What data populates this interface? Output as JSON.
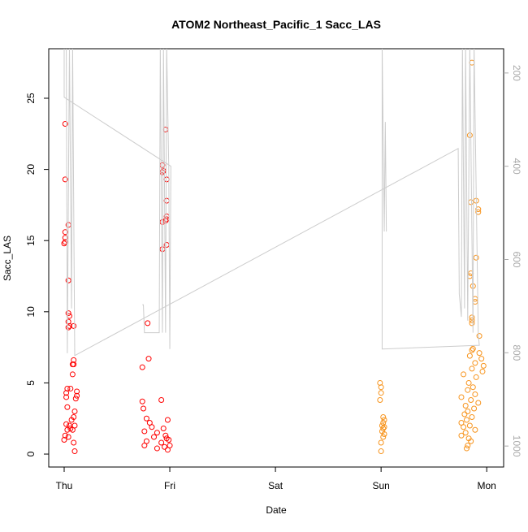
{
  "chart_data": {
    "type": "scatter",
    "title": "ATOM2 Northeast_Pacific_1 Sacc_LAS",
    "x_label": "Date",
    "y_label": "Sacc_LAS",
    "xlim": [
      -0.146,
      4.16
    ],
    "ylim": [
      -0.91,
      28.48
    ],
    "y2lim": [
      1045,
      148
    ],
    "xticks": [
      {
        "value": 0,
        "label": "Thu"
      },
      {
        "value": 1,
        "label": "Fri"
      },
      {
        "value": 2,
        "label": "Sat"
      },
      {
        "value": 3,
        "label": "Sun"
      },
      {
        "value": 4,
        "label": "Mon"
      }
    ],
    "yticks": [
      0,
      5,
      10,
      15,
      20,
      25
    ],
    "y2ticks": [
      200,
      400,
      600,
      800,
      1000
    ],
    "series": [
      {
        "color": "#ff0000",
        "x": [
          0.01,
          0.01,
          0.01,
          0.01,
          0.01,
          0.0,
          0.04,
          0.04,
          0.04,
          0.05,
          0.04,
          0.05,
          0.04,
          0.09,
          0.09,
          0.08,
          0.09,
          0.08,
          0.03,
          0.06,
          0.12,
          0.02,
          0.12,
          0.02,
          0.11,
          0.03,
          0.1,
          0.09,
          0.07,
          0.02,
          0.05,
          0.1,
          0.06,
          0.03,
          0.08,
          0.01,
          0.04,
          0.0,
          0.09,
          0.1,
          0.74,
          0.8,
          0.79,
          0.74,
          0.75,
          0.92,
          0.78,
          0.81,
          0.83,
          0.76,
          0.88,
          0.85,
          0.78,
          0.92,
          0.76,
          0.88,
          0.95,
          0.98,
          1.0,
          0.93,
          0.93,
          0.94,
          0.96,
          0.97,
          0.97,
          0.97,
          0.96,
          0.93,
          0.97,
          0.97,
          0.93,
          0.98,
          0.96,
          0.99,
          0.94,
          0.97
        ],
        "values": [
          23.2,
          19.3,
          15.6,
          15.2,
          14.9,
          14.8,
          16.1,
          12.2,
          9.9,
          9.7,
          9.3,
          9.0,
          8.9,
          9.0,
          6.6,
          6.3,
          6.3,
          5.6,
          4.6,
          4.6,
          4.4,
          4.3,
          4.1,
          4.0,
          3.9,
          3.3,
          3.0,
          2.6,
          2.4,
          2.1,
          2.0,
          2.0,
          1.8,
          1.7,
          1.7,
          1.3,
          1.2,
          1.0,
          0.8,
          0.2,
          6.1,
          6.7,
          9.2,
          3.7,
          3.2,
          3.8,
          2.5,
          2.2,
          1.9,
          1.6,
          1.5,
          1.2,
          0.9,
          0.8,
          0.6,
          0.4,
          0.5,
          0.3,
          0.6,
          20.3,
          19.8,
          19.9,
          22.8,
          19.3,
          17.8,
          16.7,
          16.4,
          16.3,
          16.5,
          14.7,
          14.4,
          2.4,
          1.3,
          1.0,
          1.8,
          1.1
        ]
      },
      {
        "color": "#f7941d",
        "x": [
          2.99,
          3.0,
          3.0,
          2.99,
          3.02,
          3.03,
          3.02,
          3.01,
          3.03,
          3.02,
          3.01,
          3.03,
          3.02,
          3.0,
          3.0,
          3.86,
          3.84,
          3.85,
          3.9,
          3.92,
          3.92,
          3.9,
          3.85,
          3.84,
          3.87,
          3.89,
          3.89,
          3.86,
          3.86,
          3.86,
          3.93,
          3.87,
          3.86,
          3.93,
          3.84,
          3.95,
          3.89,
          3.97,
          3.86,
          3.96,
          3.78,
          3.9,
          3.83,
          3.87,
          3.82,
          3.89,
          3.76,
          3.85,
          3.92,
          3.8,
          3.88,
          3.82,
          3.79,
          3.86,
          3.81,
          3.76,
          3.84,
          3.78,
          3.89,
          3.8,
          3.76,
          3.83,
          3.85,
          3.82,
          3.81
        ],
        "values": [
          5.0,
          4.7,
          4.3,
          3.8,
          2.6,
          2.4,
          2.2,
          2.0,
          1.9,
          1.8,
          1.6,
          1.4,
          1.2,
          0.8,
          0.2,
          27.5,
          22.4,
          17.7,
          17.8,
          17.2,
          17.0,
          13.8,
          12.7,
          12.5,
          11.8,
          10.9,
          10.7,
          9.6,
          9.4,
          9.2,
          8.3,
          7.4,
          7.3,
          7.1,
          6.9,
          6.7,
          6.4,
          6.2,
          6.0,
          5.8,
          5.6,
          5.4,
          5.0,
          4.7,
          4.5,
          4.2,
          4.0,
          3.8,
          3.6,
          3.4,
          3.2,
          3.0,
          2.8,
          2.6,
          2.4,
          2.2,
          2.0,
          1.9,
          1.7,
          1.5,
          1.3,
          1.1,
          0.9,
          0.6,
          0.4
        ]
      },
      {
        "type": "line",
        "axis": "y2",
        "color": "#cccccc",
        "x": [
          0.74,
          0.75,
          0.76,
          0.9,
          0.91,
          0.93,
          0.94,
          0.96,
          0.97,
          0.99,
          1.0,
          1.01,
          0.0,
          0.0,
          0.02,
          0.03,
          0.05,
          0.07,
          0.08,
          0.1,
          3.73,
          3.74,
          3.76,
          3.77,
          3.79,
          3.8,
          3.82,
          3.84,
          3.87,
          3.88,
          3.92,
          3.93,
          3.01,
          3.01,
          3.03,
          3.04,
          3.05
        ],
        "values": [
          697,
          697,
          757,
          757,
          140,
          757,
          140,
          757,
          140,
          400,
          792,
          400,
          252,
          140,
          140,
          801,
          140,
          705,
          140,
          806,
          362,
          674,
          723,
          140,
          705,
          140,
          731,
          140,
          757,
          140,
          761,
          784,
          792,
          140,
          540,
          305,
          540
        ]
      }
    ]
  }
}
